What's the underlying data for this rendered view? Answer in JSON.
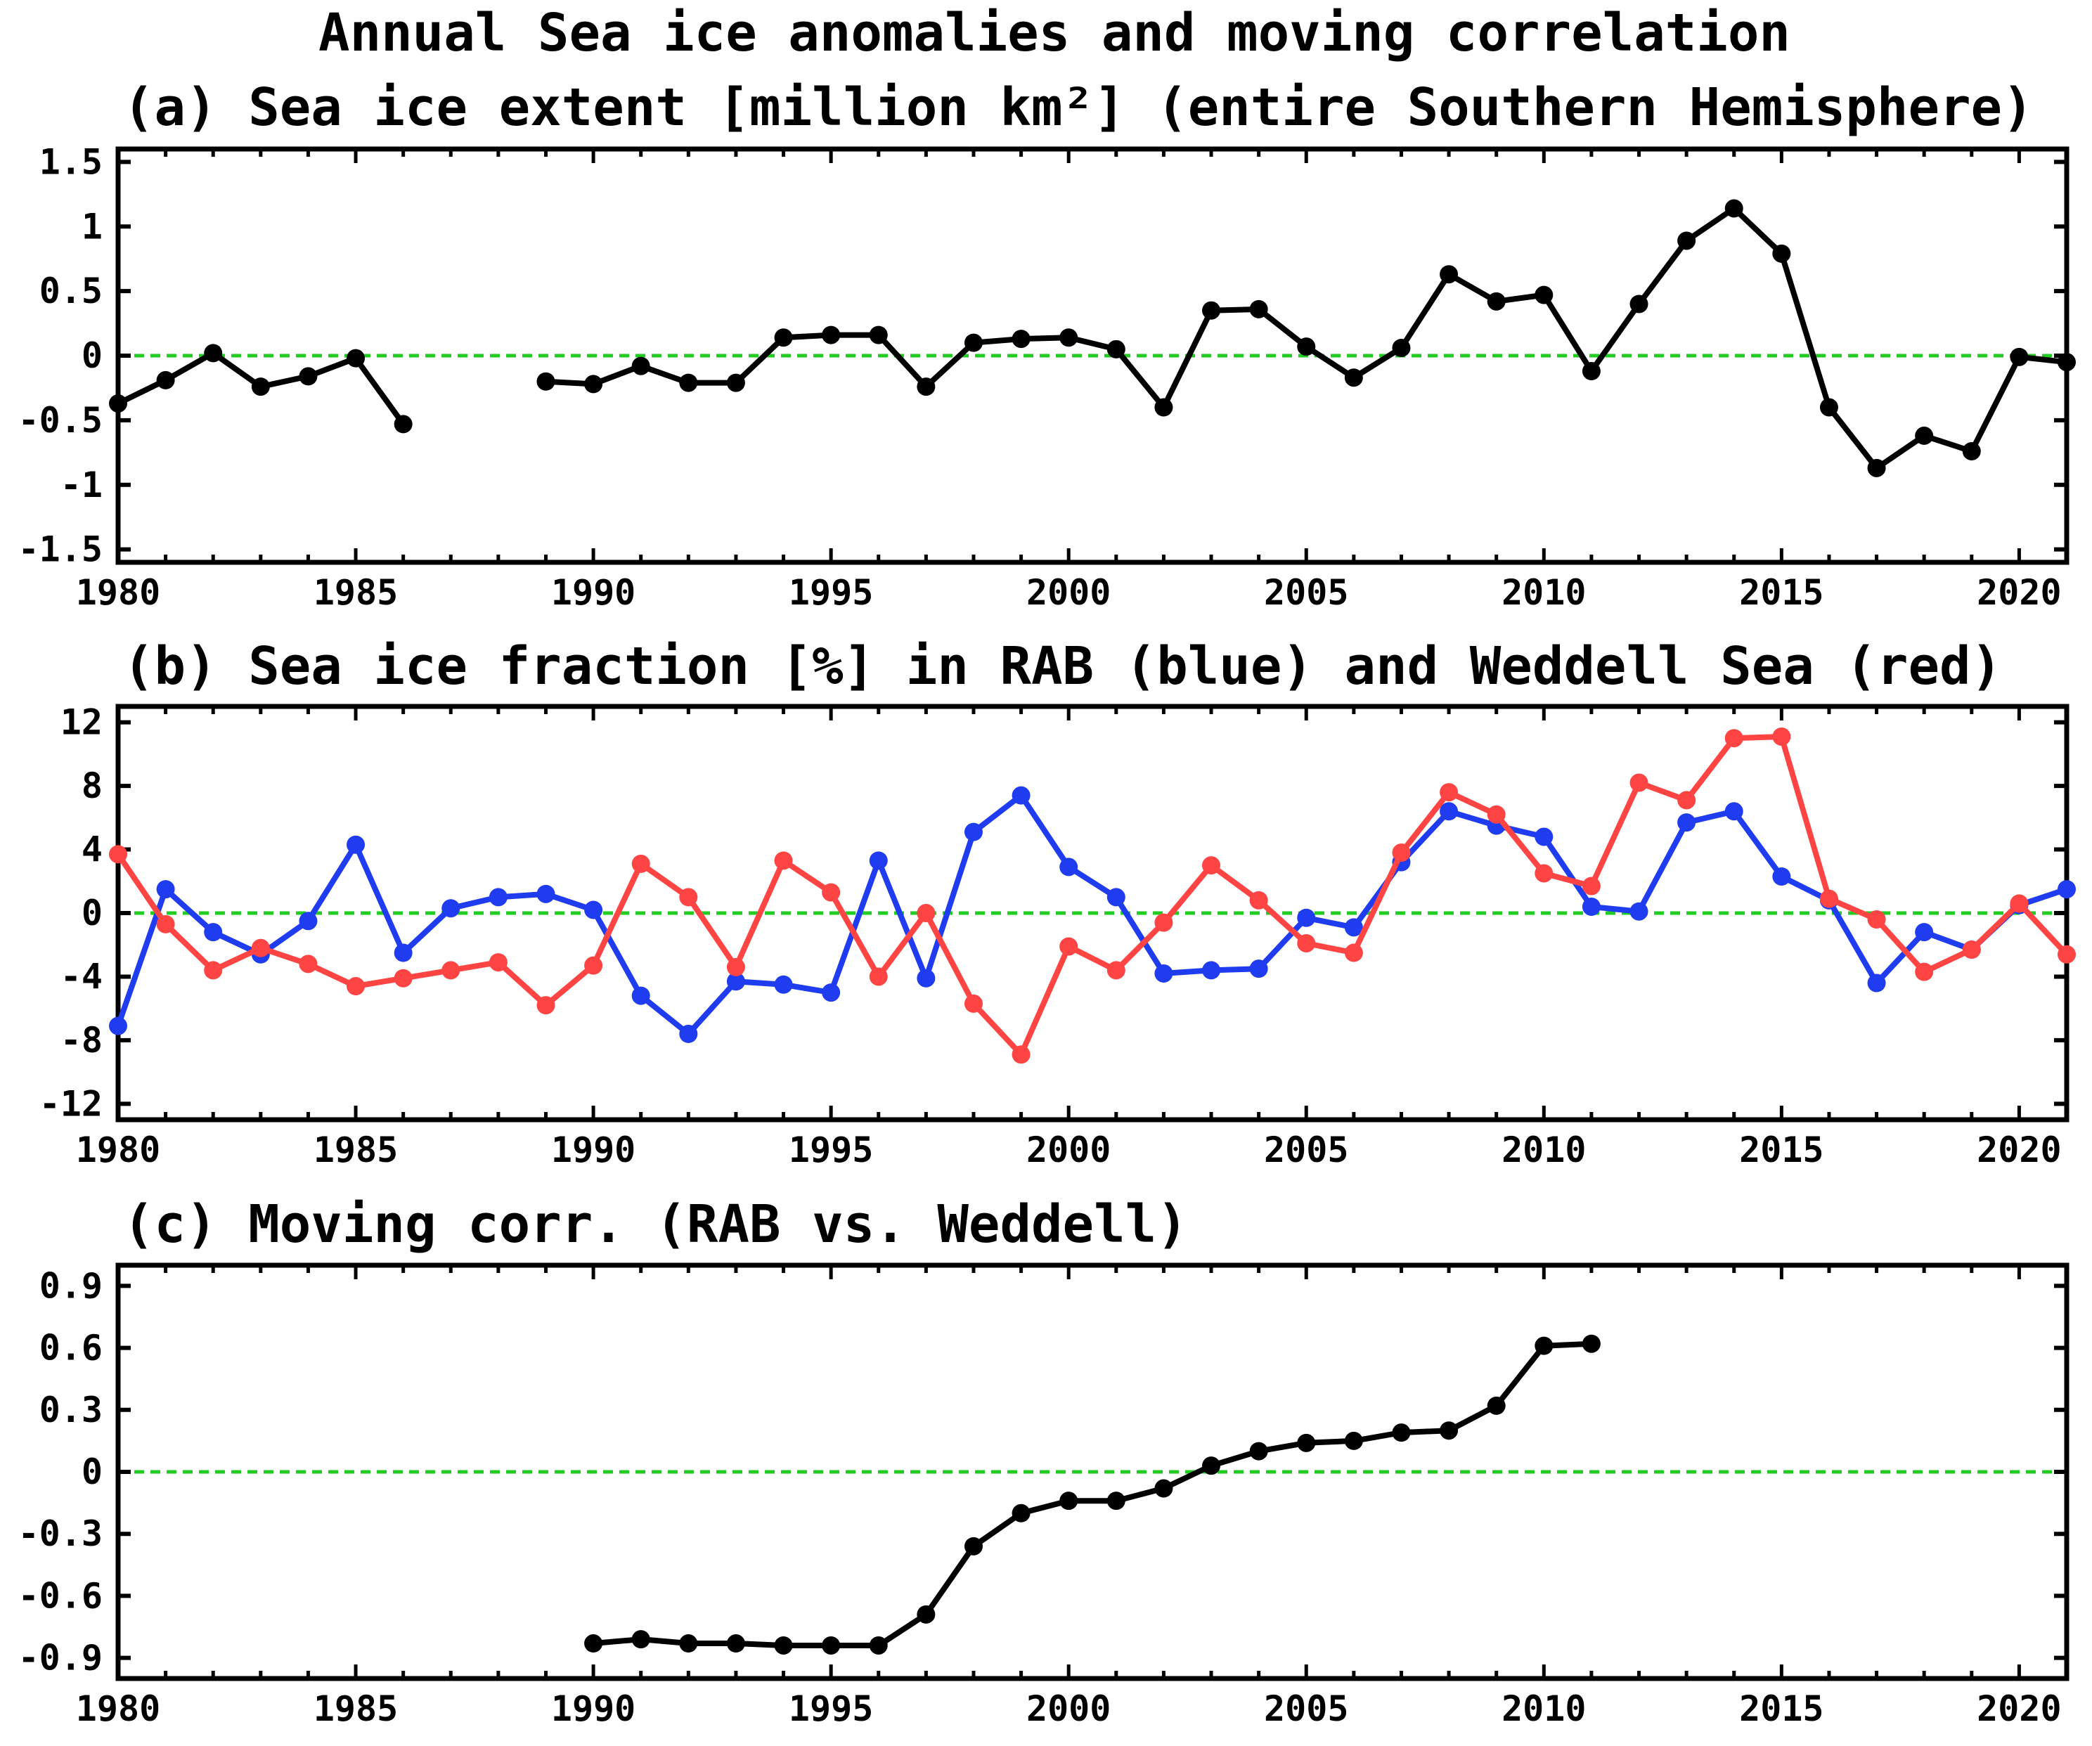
{
  "figure_title": "Annual Sea ice anomalies and moving correlation",
  "colors": {
    "extent": "#000000",
    "rab": "#1f3cf0",
    "weddell": "#ff4444",
    "zero_line": "#22cc22",
    "corr": "#000000"
  },
  "chart_data": [
    {
      "type": "line",
      "title": "(a) Sea ice extent [million km²] (entire Southern Hemisphere)",
      "xlim": [
        1980,
        2021
      ],
      "ylim": [
        -1.6,
        1.6
      ],
      "xticks": [
        1980,
        1985,
        1990,
        1995,
        2000,
        2005,
        2010,
        2015,
        2020
      ],
      "yticks": [
        -1.5,
        -1,
        -0.5,
        0,
        0.5,
        1,
        1.5
      ],
      "yticklabels": [
        "-1.5",
        "-1",
        "-0.5",
        "0",
        "0.5",
        "1",
        "1.5"
      ],
      "zero_line": true,
      "series": [
        {
          "name": "Sea ice extent",
          "color": "#000000",
          "x": [
            1980,
            1981,
            1982,
            1983,
            1984,
            1985,
            1986,
            1987,
            1988,
            1989,
            1990,
            1991,
            1992,
            1993,
            1994,
            1995,
            1996,
            1997,
            1998,
            1999,
            2000,
            2001,
            2002,
            2003,
            2004,
            2005,
            2006,
            2007,
            2008,
            2009,
            2010,
            2011,
            2012,
            2013,
            2014,
            2015,
            2016,
            2017,
            2018,
            2019,
            2020,
            2021
          ],
          "values": [
            -0.37,
            -0.19,
            0.02,
            -0.24,
            -0.16,
            -0.02,
            -0.53,
            null,
            null,
            -0.2,
            -0.22,
            -0.08,
            -0.21,
            -0.21,
            0.14,
            0.16,
            0.16,
            -0.24,
            0.1,
            0.13,
            0.14,
            0.05,
            -0.4,
            0.35,
            0.36,
            0.07,
            -0.17,
            0.06,
            0.63,
            0.42,
            0.47,
            -0.12,
            0.4,
            0.89,
            1.14,
            0.79,
            -0.4,
            -0.87,
            -0.62,
            -0.74,
            -0.01,
            -0.05
          ]
        }
      ]
    },
    {
      "type": "line",
      "title": "(b) Sea ice fraction [%] in RAB (blue) and Weddell Sea (red)",
      "xlim": [
        1980,
        2021
      ],
      "ylim": [
        -13,
        13
      ],
      "xticks": [
        1980,
        1985,
        1990,
        1995,
        2000,
        2005,
        2010,
        2015,
        2020
      ],
      "yticks": [
        -12,
        -8,
        -4,
        0,
        4,
        8,
        12
      ],
      "yticklabels": [
        "-12",
        "-8",
        "-4",
        "0",
        "4",
        "8",
        "12"
      ],
      "zero_line": true,
      "series": [
        {
          "name": "RAB",
          "color": "#1f3cf0",
          "x": [
            1980,
            1981,
            1982,
            1983,
            1984,
            1985,
            1986,
            1987,
            1988,
            1989,
            1990,
            1991,
            1992,
            1993,
            1994,
            1995,
            1996,
            1997,
            1998,
            1999,
            2000,
            2001,
            2002,
            2003,
            2004,
            2005,
            2006,
            2007,
            2008,
            2009,
            2010,
            2011,
            2012,
            2013,
            2014,
            2015,
            2016,
            2017,
            2018,
            2019,
            2020,
            2021
          ],
          "values": [
            -7.1,
            1.5,
            -1.2,
            -2.6,
            -0.5,
            4.3,
            -2.5,
            0.3,
            1.0,
            1.2,
            0.2,
            -5.2,
            -7.6,
            -4.3,
            -4.5,
            -5.0,
            3.3,
            -4.1,
            5.1,
            7.4,
            2.9,
            1.0,
            -3.8,
            -3.6,
            -3.5,
            -0.3,
            -0.9,
            3.2,
            6.4,
            5.5,
            4.8,
            0.4,
            0.1,
            5.7,
            6.4,
            2.3,
            0.8,
            -4.4,
            -1.2,
            -2.3,
            0.5,
            1.5
          ]
        },
        {
          "name": "Weddell Sea",
          "color": "#ff4444",
          "x": [
            1980,
            1981,
            1982,
            1983,
            1984,
            1985,
            1986,
            1987,
            1988,
            1989,
            1990,
            1991,
            1992,
            1993,
            1994,
            1995,
            1996,
            1997,
            1998,
            1999,
            2000,
            2001,
            2002,
            2003,
            2004,
            2005,
            2006,
            2007,
            2008,
            2009,
            2010,
            2011,
            2012,
            2013,
            2014,
            2015,
            2016,
            2017,
            2018,
            2019,
            2020,
            2021
          ],
          "values": [
            3.7,
            -0.7,
            -3.6,
            -2.2,
            -3.2,
            -4.6,
            -4.1,
            -3.6,
            -3.1,
            -5.8,
            -3.3,
            3.1,
            1.0,
            -3.4,
            3.3,
            1.3,
            -4.0,
            0.0,
            -5.7,
            -8.9,
            -2.1,
            -3.6,
            -0.6,
            3.0,
            0.8,
            -1.9,
            -2.5,
            3.8,
            7.6,
            6.2,
            2.5,
            1.7,
            8.2,
            7.1,
            11.0,
            11.1,
            0.9,
            -0.4,
            -3.7,
            -2.3,
            0.6,
            -2.6
          ]
        }
      ]
    },
    {
      "type": "line",
      "title": "(c) Moving corr. (RAB vs. Weddell)",
      "xlim": [
        1980,
        2021
      ],
      "ylim": [
        -1.0,
        1.0
      ],
      "xticks": [
        1980,
        1985,
        1990,
        1995,
        2000,
        2005,
        2010,
        2015,
        2020
      ],
      "yticks": [
        -0.9,
        -0.6,
        -0.3,
        0,
        0.3,
        0.6,
        0.9
      ],
      "yticklabels": [
        "-0.9",
        "-0.6",
        "-0.3",
        "0",
        "0.3",
        "0.6",
        "0.9"
      ],
      "zero_line": true,
      "series": [
        {
          "name": "Moving correlation",
          "color": "#000000",
          "x": [
            1990,
            1991,
            1992,
            1993,
            1994,
            1995,
            1996,
            1997,
            1998,
            1999,
            2000,
            2001,
            2002,
            2003,
            2004,
            2005,
            2006,
            2007,
            2008,
            2009,
            2010,
            2011
          ],
          "values": [
            -0.83,
            -0.81,
            -0.83,
            -0.83,
            -0.84,
            -0.84,
            -0.84,
            -0.69,
            -0.36,
            -0.2,
            -0.14,
            -0.14,
            -0.08,
            0.03,
            0.1,
            0.14,
            0.15,
            0.19,
            0.2,
            0.32,
            0.61,
            0.62
          ]
        }
      ]
    }
  ]
}
